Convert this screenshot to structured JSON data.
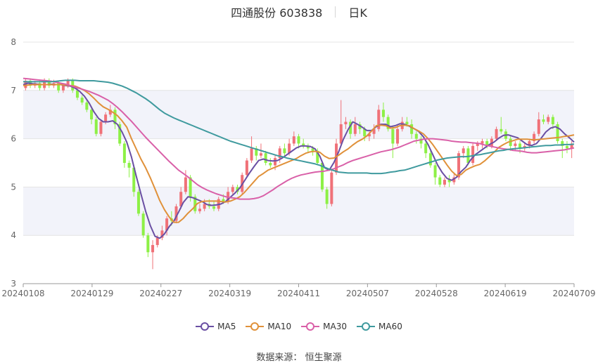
{
  "header": {
    "title": "四通股份 603838",
    "period": "日K"
  },
  "source": {
    "label": "数据来源：",
    "provider": "恒生聚源"
  },
  "colors": {
    "up": "#f07178",
    "down": "#8df046",
    "ma5": "#6a4fa3",
    "ma10": "#e0913a",
    "ma30": "#d960a8",
    "ma60": "#3f9a9e",
    "band": "#f2f3fa",
    "grid": "#e4e4e4",
    "axis": "#666666"
  },
  "chart_data": {
    "type": "candlestick",
    "xlabels": [
      "20240108",
      "20240129",
      "20240227",
      "20240319",
      "20240411",
      "20240507",
      "20240528",
      "20240619",
      "20240709"
    ],
    "yticks": [
      3,
      4,
      5,
      6,
      7,
      8
    ],
    "ylim": [
      3,
      8
    ],
    "grid": true,
    "legend_position": "bottom",
    "legend": [
      "MA5",
      "MA10",
      "MA30",
      "MA60"
    ],
    "candles": [
      [
        7.05,
        7.2,
        7.25,
        7.0
      ],
      [
        7.2,
        7.1,
        7.25,
        7.05
      ],
      [
        7.1,
        7.15,
        7.2,
        7.05
      ],
      [
        7.15,
        7.05,
        7.2,
        7.0
      ],
      [
        7.05,
        7.2,
        7.25,
        7.0
      ],
      [
        7.2,
        7.1,
        7.25,
        7.05
      ],
      [
        7.1,
        7.15,
        7.22,
        7.05
      ],
      [
        7.15,
        7.0,
        7.2,
        6.95
      ],
      [
        7.0,
        7.1,
        7.15,
        6.95
      ],
      [
        7.1,
        7.2,
        7.25,
        7.05
      ],
      [
        7.2,
        7.0,
        7.25,
        6.95
      ],
      [
        7.0,
        6.85,
        7.05,
        6.8
      ],
      [
        6.85,
        6.75,
        6.9,
        6.7
      ],
      [
        6.75,
        6.6,
        6.8,
        6.55
      ],
      [
        6.6,
        6.4,
        6.65,
        6.3
      ],
      [
        6.4,
        6.1,
        6.45,
        6.05
      ],
      [
        6.1,
        6.35,
        6.4,
        6.05
      ],
      [
        6.35,
        6.5,
        6.55,
        6.3
      ],
      [
        6.5,
        6.6,
        6.7,
        6.45
      ],
      [
        6.6,
        6.3,
        6.65,
        6.2
      ],
      [
        6.3,
        5.9,
        6.35,
        5.85
      ],
      [
        5.9,
        5.5,
        5.95,
        5.4
      ],
      [
        5.5,
        5.4,
        5.55,
        5.2
      ],
      [
        5.4,
        4.9,
        5.45,
        4.8
      ],
      [
        4.9,
        4.45,
        4.95,
        4.4
      ],
      [
        4.45,
        4.0,
        4.5,
        3.95
      ],
      [
        4.0,
        3.65,
        4.05,
        3.55
      ],
      [
        3.65,
        3.8,
        3.9,
        3.3
      ],
      [
        3.8,
        3.95,
        4.0,
        3.75
      ],
      [
        3.95,
        4.1,
        4.2,
        3.9
      ],
      [
        4.1,
        4.35,
        4.4,
        4.0
      ],
      [
        4.35,
        4.3,
        4.5,
        4.2
      ],
      [
        4.3,
        4.6,
        4.65,
        4.25
      ],
      [
        4.6,
        4.9,
        5.0,
        4.55
      ],
      [
        4.9,
        5.2,
        5.35,
        4.85
      ],
      [
        5.2,
        4.8,
        5.25,
        4.7
      ],
      [
        4.8,
        4.5,
        4.85,
        4.45
      ],
      [
        4.5,
        4.55,
        4.65,
        4.45
      ],
      [
        4.55,
        4.65,
        4.75,
        4.5
      ],
      [
        4.65,
        4.6,
        4.75,
        4.55
      ],
      [
        4.6,
        4.55,
        4.7,
        4.5
      ],
      [
        4.55,
        4.75,
        4.8,
        4.5
      ],
      [
        4.75,
        4.7,
        4.85,
        4.65
      ],
      [
        4.7,
        4.9,
        5.0,
        4.65
      ],
      [
        4.9,
        5.0,
        5.05,
        4.85
      ],
      [
        5.0,
        4.9,
        5.05,
        4.85
      ],
      [
        4.9,
        5.25,
        5.3,
        4.85
      ],
      [
        5.25,
        5.55,
        5.6,
        5.2
      ],
      [
        5.55,
        5.8,
        6.05,
        5.5
      ],
      [
        5.8,
        5.65,
        5.85,
        5.55
      ],
      [
        5.65,
        5.7,
        5.9,
        5.6
      ],
      [
        5.7,
        5.5,
        5.75,
        5.45
      ],
      [
        5.5,
        5.45,
        5.6,
        5.4
      ],
      [
        5.45,
        5.6,
        5.65,
        5.35
      ],
      [
        5.6,
        5.8,
        5.85,
        5.5
      ],
      [
        5.8,
        5.7,
        5.9,
        5.65
      ],
      [
        5.7,
        5.9,
        6.0,
        5.65
      ],
      [
        5.9,
        6.05,
        6.15,
        5.85
      ],
      [
        6.05,
        5.9,
        6.1,
        5.8
      ],
      [
        5.9,
        5.85,
        6.0,
        5.8
      ],
      [
        5.85,
        5.8,
        5.9,
        5.7
      ],
      [
        5.8,
        5.75,
        5.85,
        5.65
      ],
      [
        5.75,
        5.5,
        5.8,
        5.45
      ],
      [
        5.5,
        4.95,
        5.55,
        4.9
      ],
      [
        4.95,
        4.65,
        5.0,
        4.55
      ],
      [
        4.65,
        5.3,
        5.35,
        4.6
      ],
      [
        5.3,
        5.9,
        6.0,
        5.25
      ],
      [
        5.9,
        6.3,
        6.8,
        5.85
      ],
      [
        6.3,
        6.35,
        6.45,
        6.2
      ],
      [
        6.35,
        6.1,
        6.4,
        6.0
      ],
      [
        6.1,
        6.3,
        6.45,
        6.05
      ],
      [
        6.3,
        6.2,
        6.35,
        6.1
      ],
      [
        6.2,
        6.05,
        6.25,
        5.95
      ],
      [
        6.05,
        6.1,
        6.15,
        5.95
      ],
      [
        6.1,
        6.2,
        6.3,
        6.0
      ],
      [
        6.2,
        6.6,
        6.7,
        6.15
      ],
      [
        6.6,
        6.45,
        6.75,
        6.35
      ],
      [
        6.45,
        6.2,
        6.5,
        6.15
      ],
      [
        6.2,
        5.9,
        6.25,
        5.6
      ],
      [
        5.9,
        6.2,
        6.3,
        5.85
      ],
      [
        6.2,
        6.35,
        6.45,
        6.15
      ],
      [
        6.35,
        6.3,
        6.45,
        6.25
      ],
      [
        6.3,
        6.1,
        6.4,
        6.0
      ],
      [
        6.1,
        6.0,
        6.15,
        5.9
      ],
      [
        6.0,
        5.9,
        6.05,
        5.8
      ],
      [
        5.9,
        5.7,
        5.95,
        5.6
      ],
      [
        5.7,
        5.45,
        5.75,
        5.4
      ],
      [
        5.45,
        5.2,
        5.5,
        5.05
      ],
      [
        5.2,
        5.05,
        5.25,
        5.0
      ],
      [
        5.05,
        5.15,
        5.2,
        5.0
      ],
      [
        5.15,
        5.1,
        5.25,
        5.0
      ],
      [
        5.1,
        5.2,
        5.3,
        5.05
      ],
      [
        5.2,
        5.7,
        5.75,
        5.15
      ],
      [
        5.7,
        5.8,
        5.85,
        5.6
      ],
      [
        5.8,
        5.5,
        5.85,
        5.45
      ],
      [
        5.5,
        5.85,
        5.9,
        5.45
      ],
      [
        5.85,
        5.9,
        5.95,
        5.75
      ],
      [
        5.9,
        5.95,
        6.0,
        5.8
      ],
      [
        5.95,
        5.85,
        6.0,
        5.8
      ],
      [
        5.85,
        6.0,
        6.05,
        5.8
      ],
      [
        6.0,
        6.2,
        6.25,
        5.95
      ],
      [
        6.2,
        6.15,
        6.45,
        6.1
      ],
      [
        6.15,
        6.0,
        6.2,
        5.95
      ],
      [
        6.0,
        5.85,
        6.05,
        5.75
      ],
      [
        5.85,
        5.9,
        5.95,
        5.75
      ],
      [
        5.9,
        5.8,
        5.95,
        5.7
      ],
      [
        5.8,
        5.85,
        5.9,
        5.75
      ],
      [
        5.85,
        5.95,
        6.0,
        5.8
      ],
      [
        5.95,
        6.1,
        6.15,
        5.9
      ],
      [
        6.1,
        6.4,
        6.55,
        6.05
      ],
      [
        6.4,
        6.35,
        6.5,
        6.3
      ],
      [
        6.35,
        6.45,
        6.5,
        6.3
      ],
      [
        6.45,
        6.3,
        6.5,
        6.2
      ],
      [
        6.3,
        5.95,
        6.35,
        5.9
      ],
      [
        5.95,
        5.85,
        6.0,
        5.6
      ],
      [
        5.85,
        5.8,
        5.95,
        5.7
      ],
      [
        5.8,
        5.9,
        5.95,
        5.6
      ]
    ],
    "series": [
      {
        "name": "MA5",
        "color": "#6a4fa3",
        "values": [
          7.12,
          7.15,
          7.14,
          7.13,
          7.12,
          7.12,
          7.13,
          7.12,
          7.12,
          7.1,
          7.09,
          7.05,
          6.98,
          6.88,
          6.74,
          6.56,
          6.42,
          6.35,
          6.35,
          6.37,
          6.3,
          6.14,
          5.93,
          5.62,
          5.23,
          4.86,
          4.5,
          4.2,
          3.98,
          3.94,
          4.03,
          4.18,
          4.3,
          4.48,
          4.68,
          4.8,
          4.78,
          4.74,
          4.7,
          4.64,
          4.62,
          4.63,
          4.65,
          4.7,
          4.79,
          4.88,
          4.98,
          5.13,
          5.28,
          5.42,
          5.55,
          5.58,
          5.55,
          5.54,
          5.55,
          5.6,
          5.67,
          5.74,
          5.81,
          5.85,
          5.85,
          5.84,
          5.79,
          5.64,
          5.4,
          5.35,
          5.51,
          5.73,
          5.99,
          6.19,
          6.35,
          6.3,
          6.24,
          6.17,
          6.17,
          6.25,
          6.3,
          6.3,
          6.25,
          6.27,
          6.31,
          6.3,
          6.26,
          6.21,
          6.15,
          6.04,
          5.88,
          5.67,
          5.46,
          5.3,
          5.18,
          5.14,
          5.2,
          5.32,
          5.41,
          5.56,
          5.67,
          5.74,
          5.81,
          5.88,
          5.93,
          6.01,
          6.07,
          6.08,
          6.05,
          6.02,
          5.95,
          5.88,
          5.86,
          5.9,
          6.01,
          6.14,
          6.22,
          6.25,
          6.2,
          6.1,
          6.02,
          5.93
        ]
      },
      {
        "name": "MA10",
        "color": "#e0913a",
        "values": [
          7.1,
          7.11,
          7.12,
          7.12,
          7.12,
          7.12,
          7.12,
          7.12,
          7.12,
          7.11,
          7.1,
          7.09,
          7.05,
          7.0,
          6.93,
          6.84,
          6.74,
          6.66,
          6.61,
          6.55,
          6.48,
          6.37,
          6.24,
          6.0,
          5.79,
          5.58,
          5.4,
          5.19,
          4.96,
          4.72,
          4.53,
          4.38,
          4.27,
          4.27,
          4.35,
          4.46,
          4.55,
          4.66,
          4.7,
          4.71,
          4.71,
          4.71,
          4.7,
          4.69,
          4.71,
          4.75,
          4.8,
          4.89,
          5.0,
          5.11,
          5.22,
          5.28,
          5.35,
          5.39,
          5.43,
          5.47,
          5.51,
          5.55,
          5.59,
          5.65,
          5.7,
          5.73,
          5.74,
          5.72,
          5.64,
          5.59,
          5.6,
          5.66,
          5.73,
          5.79,
          5.87,
          5.94,
          5.99,
          6.06,
          6.16,
          6.27,
          6.28,
          6.27,
          6.22,
          6.23,
          6.27,
          6.28,
          6.27,
          6.21,
          6.16,
          6.1,
          6.0,
          5.88,
          5.74,
          5.6,
          5.46,
          5.33,
          5.24,
          5.26,
          5.35,
          5.4,
          5.44,
          5.47,
          5.54,
          5.63,
          5.72,
          5.82,
          5.88,
          5.93,
          5.96,
          5.99,
          5.99,
          5.99,
          5.98,
          5.98,
          5.99,
          6.0,
          6.01,
          6.02,
          6.03,
          6.05,
          6.06,
          6.08
        ]
      },
      {
        "name": "MA30",
        "color": "#d960a8",
        "values": [
          7.25,
          7.24,
          7.23,
          7.22,
          7.21,
          7.2,
          7.19,
          7.17,
          7.15,
          7.13,
          7.1,
          7.07,
          7.04,
          7.01,
          6.98,
          6.94,
          6.9,
          6.85,
          6.8,
          6.73,
          6.65,
          6.56,
          6.46,
          6.36,
          6.25,
          6.14,
          6.03,
          5.93,
          5.83,
          5.73,
          5.63,
          5.53,
          5.44,
          5.35,
          5.28,
          5.21,
          5.13,
          5.05,
          4.99,
          4.94,
          4.9,
          4.86,
          4.83,
          4.8,
          4.78,
          4.77,
          4.75,
          4.75,
          4.75,
          4.76,
          4.78,
          4.82,
          4.88,
          4.94,
          5.01,
          5.07,
          5.13,
          5.18,
          5.22,
          5.25,
          5.27,
          5.29,
          5.31,
          5.32,
          5.33,
          5.35,
          5.38,
          5.42,
          5.46,
          5.51,
          5.55,
          5.58,
          5.61,
          5.64,
          5.67,
          5.7,
          5.73,
          5.75,
          5.77,
          5.8,
          5.83,
          5.87,
          5.91,
          5.95,
          5.97,
          5.99,
          6.0,
          6.0,
          5.99,
          5.98,
          5.97,
          5.95,
          5.94,
          5.93,
          5.93,
          5.92,
          5.91,
          5.9,
          5.87,
          5.85,
          5.83,
          5.81,
          5.79,
          5.78,
          5.76,
          5.75,
          5.74,
          5.72,
          5.71,
          5.71,
          5.72,
          5.73,
          5.74,
          5.75,
          5.76,
          5.77,
          5.79,
          5.81
        ]
      },
      {
        "name": "MA60",
        "color": "#3f9a9e",
        "values": [
          7.18,
          7.18,
          7.18,
          7.18,
          7.18,
          7.18,
          7.18,
          7.19,
          7.2,
          7.21,
          7.21,
          7.21,
          7.2,
          7.2,
          7.2,
          7.2,
          7.19,
          7.18,
          7.17,
          7.15,
          7.12,
          7.09,
          7.05,
          7.0,
          6.95,
          6.89,
          6.83,
          6.76,
          6.68,
          6.6,
          6.53,
          6.48,
          6.43,
          6.39,
          6.35,
          6.31,
          6.27,
          6.23,
          6.19,
          6.15,
          6.11,
          6.07,
          6.03,
          5.99,
          5.95,
          5.92,
          5.89,
          5.86,
          5.83,
          5.8,
          5.77,
          5.74,
          5.71,
          5.68,
          5.65,
          5.63,
          5.6,
          5.58,
          5.56,
          5.54,
          5.52,
          5.5,
          5.48,
          5.45,
          5.41,
          5.37,
          5.34,
          5.31,
          5.3,
          5.29,
          5.29,
          5.29,
          5.29,
          5.29,
          5.28,
          5.28,
          5.28,
          5.29,
          5.31,
          5.32,
          5.34,
          5.35,
          5.38,
          5.41,
          5.44,
          5.47,
          5.5,
          5.53,
          5.56,
          5.58,
          5.6,
          5.61,
          5.62,
          5.63,
          5.63,
          5.64,
          5.66,
          5.67,
          5.69,
          5.71,
          5.73,
          5.75,
          5.76,
          5.78,
          5.79,
          5.8,
          5.81,
          5.82,
          5.83,
          5.84,
          5.85,
          5.86,
          5.86,
          5.87,
          5.87,
          5.88,
          5.88,
          5.89
        ]
      }
    ]
  }
}
